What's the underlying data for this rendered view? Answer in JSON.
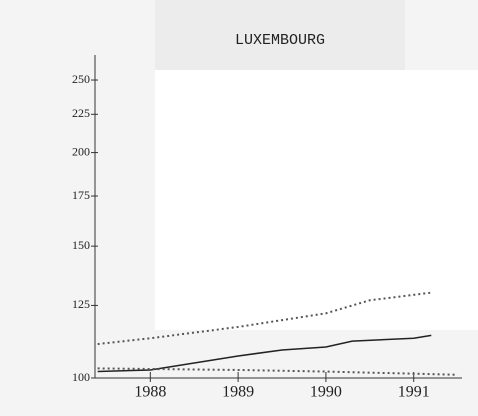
{
  "chart_data": {
    "type": "line",
    "title": "LUXEMBOURG",
    "log_y": true,
    "xlim": [
      1987.37,
      1991.55
    ],
    "xticks": [
      1988,
      1989,
      1990,
      1991
    ],
    "ylim": [
      100,
      270
    ],
    "yticks": [
      100,
      125,
      150,
      175,
      200,
      225,
      250
    ],
    "series": [
      {
        "color": "#555555",
        "dash": true,
        "x": [
          1987.4,
          1988,
          1989,
          1990,
          1990.5,
          1991.2
        ],
        "values": [
          111,
          113,
          117,
          122,
          127,
          130
        ]
      },
      {
        "color": "#222222",
        "dash": false,
        "x": [
          1987.4,
          1988,
          1989,
          1989.5,
          1990,
          1990.3,
          1991,
          1991.2
        ],
        "values": [
          102,
          102.5,
          107,
          109,
          110,
          112,
          113,
          114
        ]
      },
      {
        "color": "#555555",
        "dash": true,
        "x": [
          1987.4,
          1989,
          1990,
          1991.5
        ],
        "values": [
          103,
          102.5,
          102,
          101
        ]
      }
    ]
  }
}
